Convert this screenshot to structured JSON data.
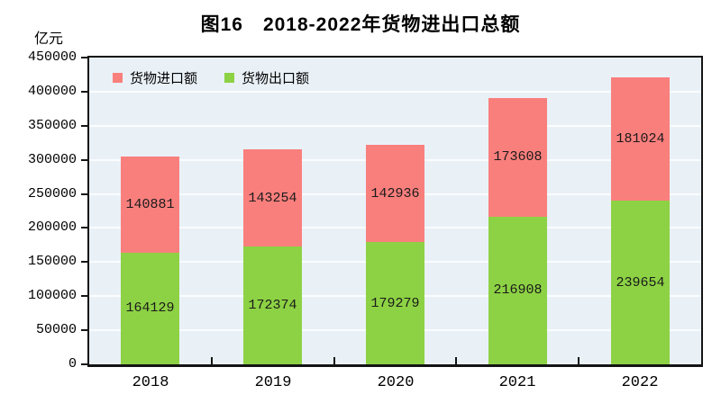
{
  "title": "图16　2018-2022年货物进出口总额",
  "y_axis_unit": "亿元",
  "legend": [
    {
      "label": "货物进口额",
      "color": "#F97F7D"
    },
    {
      "label": "货物出口额",
      "color": "#8DD244"
    }
  ],
  "colors": {
    "import_bar": "#F97F7D",
    "export_bar": "#8DD244",
    "plot_background": "#E9F1F7",
    "gridline": "rgba(255,255,255,0.8)",
    "axis": "#141414"
  },
  "chart_data": {
    "type": "bar",
    "stacked": true,
    "title": "图16　2018-2022年货物进出口总额",
    "categories": [
      "2018",
      "2019",
      "2020",
      "2021",
      "2022"
    ],
    "series": [
      {
        "name": "货物出口额",
        "color": "#8DD244",
        "values": [
          164129,
          172374,
          179279,
          216908,
          239654
        ]
      },
      {
        "name": "货物进口额",
        "color": "#F97F7D",
        "values": [
          140881,
          143254,
          142936,
          173608,
          181024
        ]
      }
    ],
    "totals": [
      305010,
      315628,
      322215,
      390516,
      420678
    ],
    "xlabel": "",
    "ylabel": "亿元",
    "ylim": [
      0,
      450000
    ],
    "ytick_step": 50000,
    "ytick_labels": [
      "0",
      "50000",
      "100000",
      "150000",
      "200000",
      "250000",
      "300000",
      "350000",
      "400000",
      "450000"
    ],
    "grid": true,
    "value_labels": "inside-segment-center",
    "legend_position": "top-left-inside"
  }
}
